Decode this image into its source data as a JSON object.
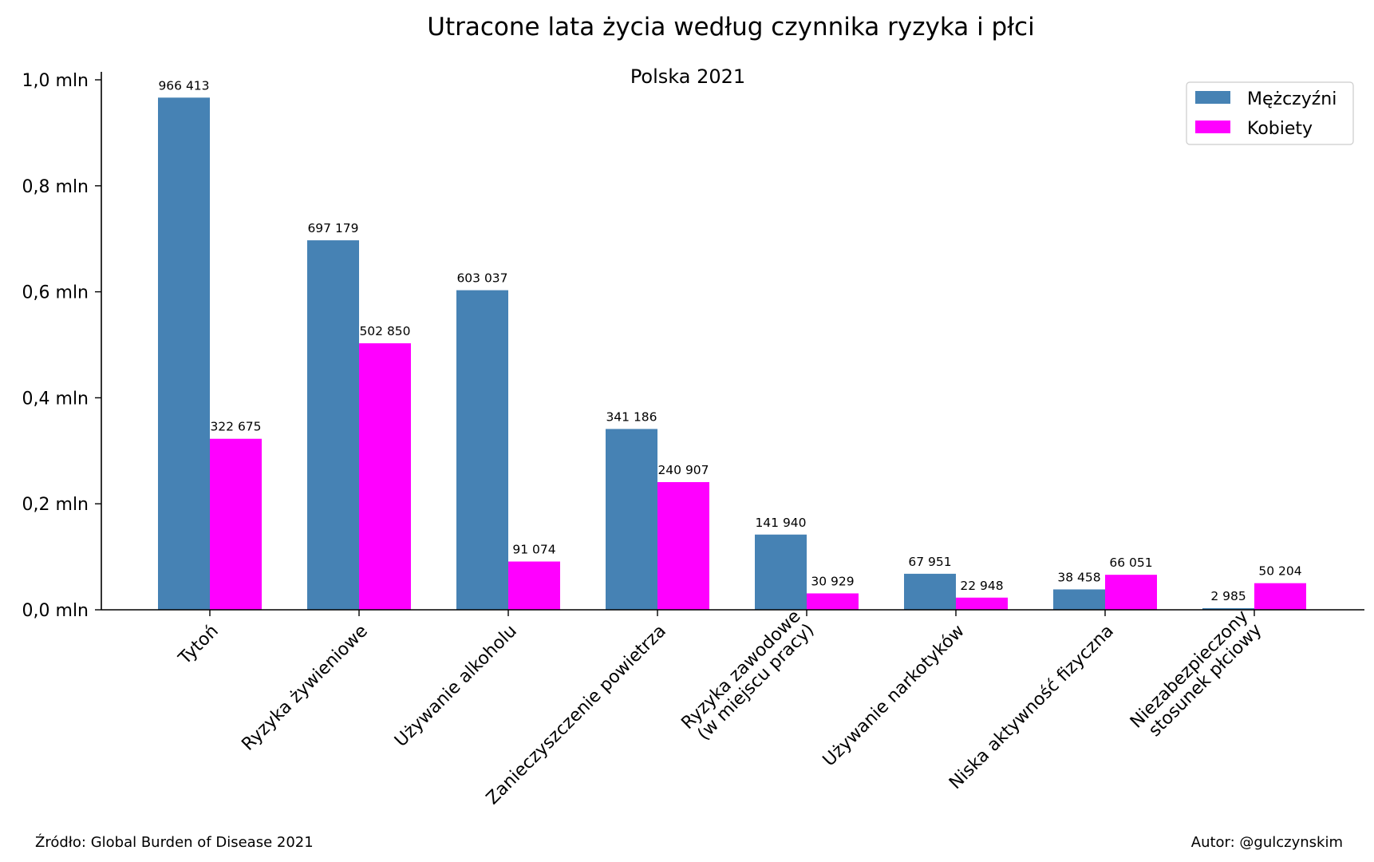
{
  "chart_data": {
    "type": "bar",
    "title": "Utracone lata życia według czynnika ryzyka i płci",
    "subtitle": "Polska 2021",
    "xlabel": "",
    "ylabel": "",
    "ylim": [
      0,
      1000000
    ],
    "yticks": [
      {
        "value": 0,
        "label": "0,0 mln"
      },
      {
        "value": 200000,
        "label": "0,2 mln"
      },
      {
        "value": 400000,
        "label": "0,4 mln"
      },
      {
        "value": 600000,
        "label": "0,6 mln"
      },
      {
        "value": 800000,
        "label": "0,8 mln"
      },
      {
        "value": 1000000,
        "label": "1,0 mln"
      }
    ],
    "categories": [
      [
        "Tytoń"
      ],
      [
        "Ryzyka żywieniowe"
      ],
      [
        "Używanie alkoholu"
      ],
      [
        "Zanieczyszczenie powietrza"
      ],
      [
        "Ryzyka zawodowe",
        "(w miejscu pracy)"
      ],
      [
        "Używanie narkotyków"
      ],
      [
        "Niska aktywność fizyczna"
      ],
      [
        "Niezabezpieczony",
        "stosunek płciowy"
      ]
    ],
    "series": [
      {
        "name": "Mężczyźni",
        "color": "#4682b4",
        "values": [
          966413,
          697179,
          603037,
          341186,
          141940,
          67951,
          38458,
          2985
        ],
        "labels": [
          "966 413",
          "697 179",
          "603 037",
          "341 186",
          "141 940",
          "67 951",
          "38 458",
          "2 985"
        ]
      },
      {
        "name": "Kobiety",
        "color": "#ff00ff",
        "values": [
          322675,
          502850,
          91074,
          240907,
          30929,
          22948,
          66051,
          50204
        ],
        "labels": [
          "322 675",
          "502 850",
          "91 074",
          "240 907",
          "30 929",
          "22 948",
          "66 051",
          "50 204"
        ]
      }
    ],
    "legend_position": "top-right",
    "grid": false
  },
  "footer": {
    "source": "Źródło: Global Burden of Disease 2021",
    "author": "Autor: @gulczynskim"
  }
}
